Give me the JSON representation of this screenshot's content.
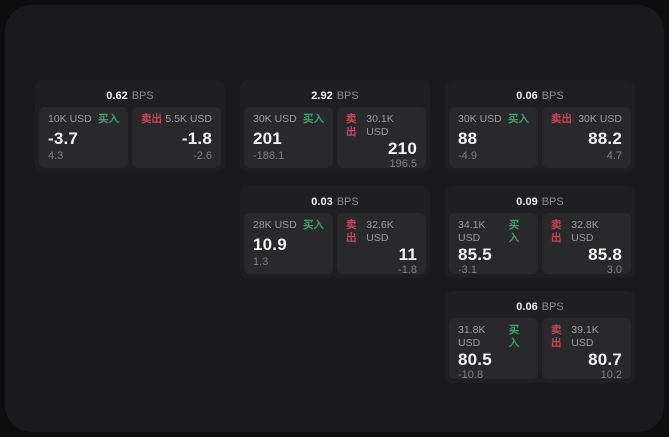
{
  "labels": {
    "bps_unit": "BPS",
    "buy": "买入",
    "sell": "卖出"
  },
  "colors": {
    "buy_green": "#3f9f6b",
    "sell_red": "#c4485c",
    "page_background": "#0e0e0f",
    "window_background": "#1a1a1c",
    "card_background": "#1f1f22",
    "panel_background": "#29292c"
  },
  "cards": [
    {
      "bps": "0.62",
      "buy": {
        "size": "10K USD",
        "value": "-3.7",
        "delta": "4.3"
      },
      "sell": {
        "size": "5.5K USD",
        "value": "-1.8",
        "delta": "-2.6"
      }
    },
    {
      "bps": "2.92",
      "buy": {
        "size": "30K USD",
        "value": "201",
        "delta": "-188.1"
      },
      "sell": {
        "size": "30.1K USD",
        "value": "210",
        "delta": "196.5"
      }
    },
    {
      "bps": "0.06",
      "buy": {
        "size": "30K USD",
        "value": "88",
        "delta": "-4.9"
      },
      "sell": {
        "size": "30K USD",
        "value": "88.2",
        "delta": "4.7"
      }
    },
    {
      "bps": "0.03",
      "buy": {
        "size": "28K USD",
        "value": "10.9",
        "delta": "1.3"
      },
      "sell": {
        "size": "32.6K USD",
        "value": "11",
        "delta": "-1.8"
      }
    },
    {
      "bps": "0.09",
      "buy": {
        "size": "34.1K USD",
        "value": "85.5",
        "delta": "-3.1"
      },
      "sell": {
        "size": "32.8K USD",
        "value": "85.8",
        "delta": "3.0"
      }
    },
    {
      "bps": "0.06",
      "buy": {
        "size": "31.8K USD",
        "value": "80.5",
        "delta": "-10.8"
      },
      "sell": {
        "size": "39.1K USD",
        "value": "80.7",
        "delta": "10.2"
      }
    }
  ]
}
